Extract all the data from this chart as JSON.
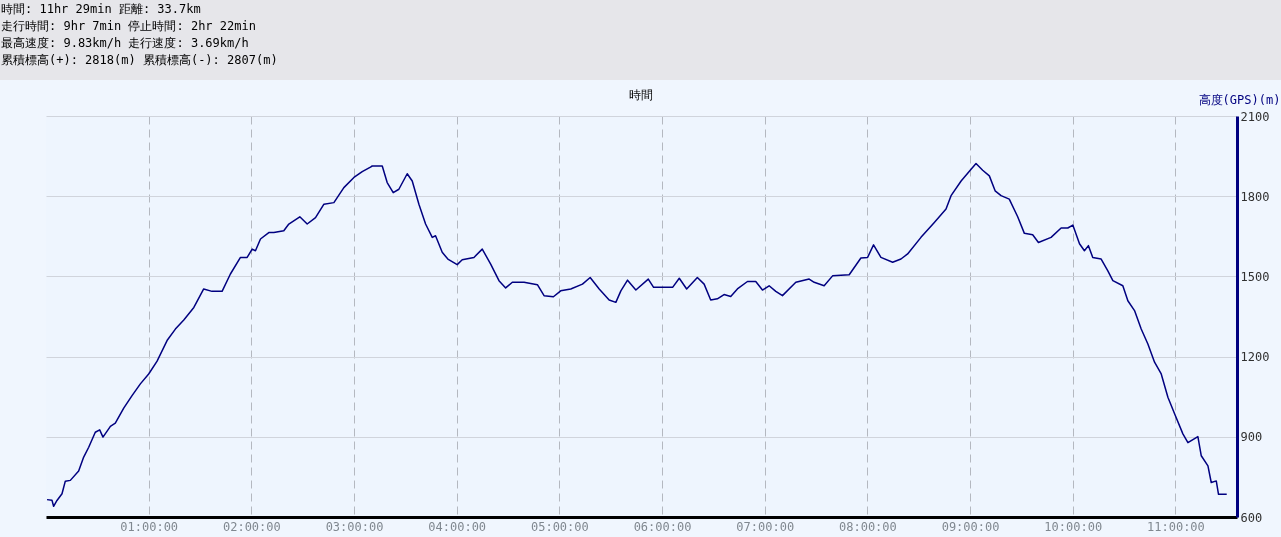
{
  "chart_data": {
    "type": "line",
    "annotations": [
      "時間: 11hr 29min 距離: 33.7km",
      "走行時間: 9hr 7min 停止時間: 2hr 22min",
      "最高速度: 9.83km/h 走行速度: 3.69km/h",
      "累積標高(+): 2818(m) 累積標高(-): 2807(m)"
    ],
    "xlabel": "時間",
    "ylabel": "高度(GPS)(m)",
    "x": [
      0.01,
      0.058,
      0.074,
      0.107,
      0.156,
      0.188,
      0.237,
      0.318,
      0.367,
      0.416,
      0.48,
      0.523,
      0.555,
      0.627,
      0.675,
      0.757,
      0.838,
      0.919,
      1.0,
      1.082,
      1.179,
      1.26,
      1.342,
      1.44,
      1.536,
      1.617,
      1.715,
      1.796,
      1.894,
      1.959,
      2.008,
      2.04,
      2.089,
      2.17,
      2.219,
      2.316,
      2.365,
      2.472,
      2.544,
      2.625,
      2.707,
      2.804,
      2.901,
      2.999,
      3.08,
      3.16,
      3.177,
      3.275,
      3.323,
      3.382,
      3.437,
      3.518,
      3.567,
      3.632,
      3.697,
      3.762,
      3.794,
      3.859,
      3.914,
      4.005,
      4.054,
      4.168,
      4.249,
      4.331,
      4.412,
      4.477,
      4.542,
      4.656,
      4.786,
      4.851,
      4.942,
      5.013,
      5.111,
      5.225,
      5.3,
      5.388,
      5.485,
      5.55,
      5.599,
      5.664,
      5.745,
      5.866,
      5.918,
      6.103,
      6.168,
      6.24,
      6.344,
      6.41,
      6.474,
      6.539,
      6.604,
      6.669,
      6.734,
      6.832,
      6.913,
      6.978,
      7.043,
      7.108,
      7.173,
      7.303,
      7.433,
      7.482,
      7.579,
      7.661,
      7.823,
      7.937,
      8.002,
      8.06,
      8.132,
      8.246,
      8.327,
      8.392,
      8.522,
      8.652,
      8.766,
      8.815,
      8.913,
      9.01,
      9.058,
      9.123,
      9.188,
      9.244,
      9.302,
      9.382,
      9.464,
      9.529,
      9.61,
      9.666,
      9.789,
      9.887,
      9.952,
      10.001,
      10.066,
      10.114,
      10.153,
      10.195,
      10.277,
      10.342,
      10.391,
      10.488,
      10.537,
      10.602,
      10.667,
      10.732,
      10.797,
      10.862,
      10.927,
      10.992,
      11.073,
      11.122,
      11.219,
      11.252,
      11.317,
      11.349,
      11.398,
      11.42,
      11.5
    ],
    "series": [
      {
        "color": "#000080",
        "values": [
          665,
          663,
          640,
          662,
          687,
          734,
          737,
          772,
          824,
          861,
          917,
          926,
          899,
          939,
          951,
          1007,
          1054,
          1098,
          1135,
          1183,
          1260,
          1303,
          1337,
          1384,
          1453,
          1444,
          1444,
          1509,
          1571,
          1571,
          1602,
          1596,
          1640,
          1664,
          1664,
          1671,
          1696,
          1723,
          1696,
          1720,
          1770,
          1776,
          1832,
          1870,
          1892,
          1909,
          1913,
          1913,
          1851,
          1813,
          1826,
          1884,
          1857,
          1770,
          1696,
          1646,
          1652,
          1590,
          1565,
          1544,
          1562,
          1571,
          1602,
          1546,
          1484,
          1457,
          1478,
          1478,
          1469,
          1428,
          1424,
          1446,
          1453,
          1471,
          1496,
          1453,
          1412,
          1403,
          1446,
          1486,
          1449,
          1490,
          1459,
          1459,
          1493,
          1453,
          1496,
          1471,
          1412,
          1416,
          1432,
          1425,
          1453,
          1481,
          1481,
          1449,
          1465,
          1444,
          1428,
          1478,
          1490,
          1478,
          1465,
          1502,
          1506,
          1569,
          1571,
          1618,
          1571,
          1553,
          1565,
          1584,
          1646,
          1702,
          1752,
          1802,
          1857,
          1901,
          1922,
          1897,
          1876,
          1820,
          1802,
          1789,
          1723,
          1661,
          1656,
          1627,
          1646,
          1681,
          1681,
          1692,
          1622,
          1596,
          1615,
          1571,
          1565,
          1521,
          1484,
          1465,
          1409,
          1372,
          1303,
          1247,
          1179,
          1135,
          1048,
          986,
          911,
          878,
          901,
          829,
          791,
          729,
          735,
          685,
          685
        ]
      }
    ],
    "xlim": [
      0,
      11.6
    ],
    "xticks": [
      {
        "value": 1,
        "label": "01:00:00"
      },
      {
        "value": 2,
        "label": "02:00:00"
      },
      {
        "value": 3,
        "label": "03:00:00"
      },
      {
        "value": 4,
        "label": "04:00:00"
      },
      {
        "value": 5,
        "label": "05:00:00"
      },
      {
        "value": 6,
        "label": "06:00:00"
      },
      {
        "value": 7,
        "label": "07:00:00"
      },
      {
        "value": 8,
        "label": "08:00:00"
      },
      {
        "value": 9,
        "label": "09:00:00"
      },
      {
        "value": 10,
        "label": "10:00:00"
      },
      {
        "value": 11,
        "label": "11:00:00"
      }
    ],
    "ylim": [
      600,
      2100
    ],
    "yticks": [
      600,
      900,
      1200,
      1500,
      1800,
      2100
    ],
    "grid": true,
    "marker": "none"
  }
}
